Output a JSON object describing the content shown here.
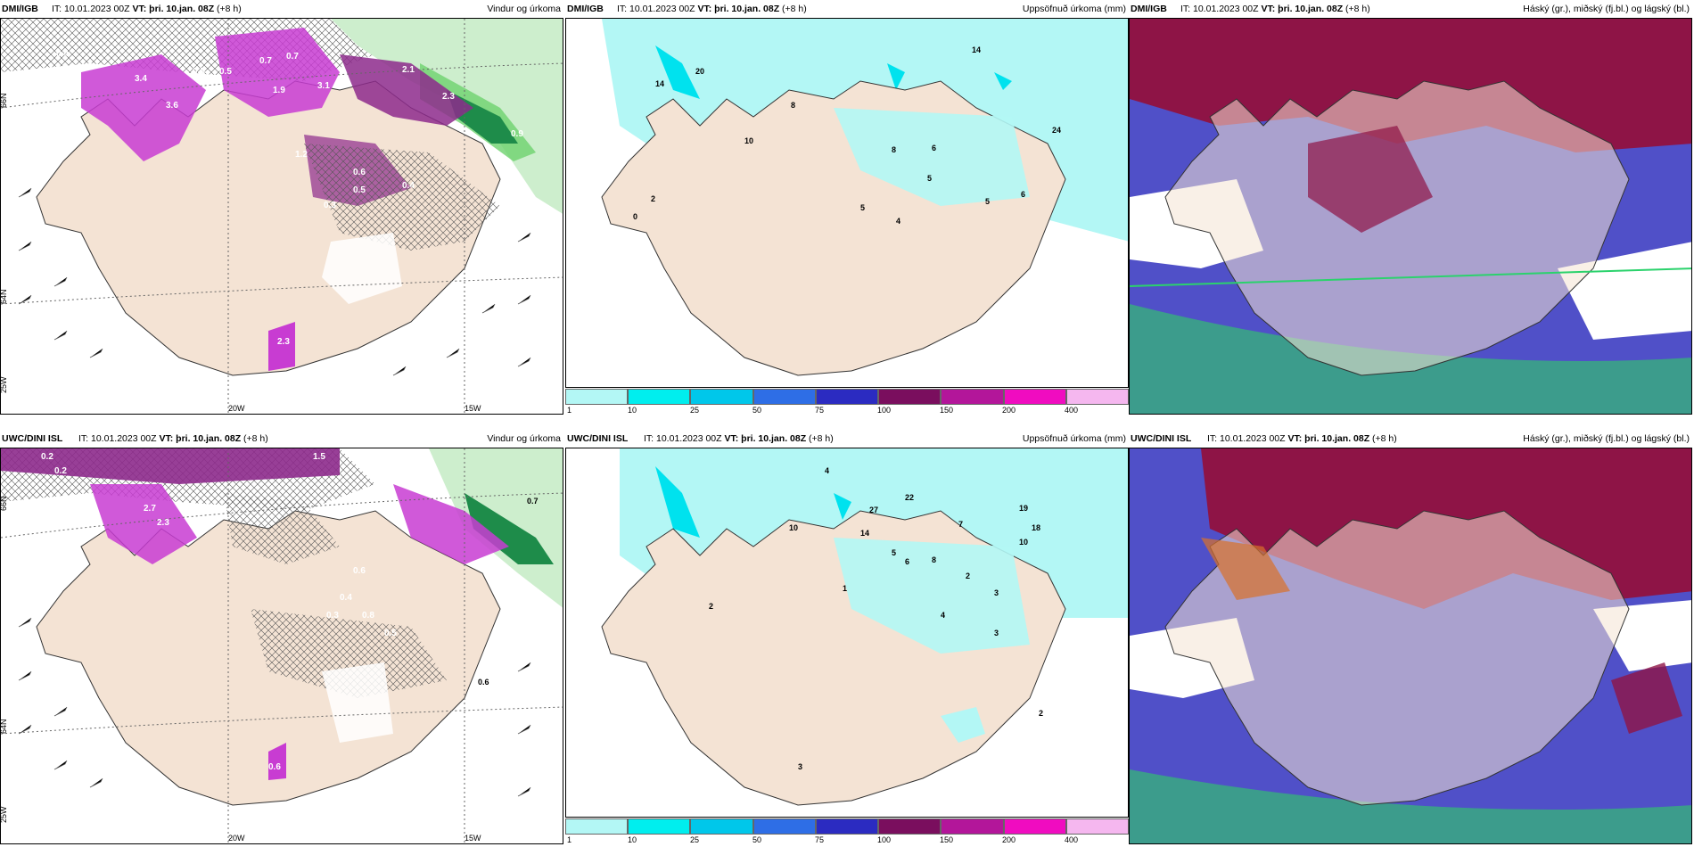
{
  "panels": {
    "top_left": {
      "source": "DMI/IGB",
      "it": "IT: 10.01.2023 00Z",
      "vt_label": "VT:",
      "vt": "þri. 10.jan. 08Z",
      "lead": "(+8 h)",
      "title": "Vindur og úrkoma"
    },
    "top_mid": {
      "source": "DMI/IGB",
      "it": "IT: 10.01.2023 00Z",
      "vt_label": "VT:",
      "vt": "þri. 10.jan. 08Z",
      "lead": "(+8 h)",
      "title": "Uppsöfnuð úrkoma (mm)"
    },
    "top_right": {
      "source": "DMI/IGB",
      "it": "IT: 10.01.2023 00Z",
      "vt_label": "VT:",
      "vt": "þri. 10.jan. 08Z",
      "lead": "(+8 h)",
      "title": "Háský (gr.), miðský (fj.bl.) og lágský (bl.)"
    },
    "bottom_left": {
      "source": "UWC/DINI ISL",
      "it": "IT: 10.01.2023 00Z",
      "vt_label": "VT:",
      "vt": "þri. 10.jan. 08Z",
      "lead": "(+8 h)",
      "title": "Vindur og úrkoma"
    },
    "bottom_mid": {
      "source": "UWC/DINI ISL",
      "it": "IT: 10.01.2023 00Z",
      "vt_label": "VT:",
      "vt": "þri. 10.jan. 08Z",
      "lead": "(+8 h)",
      "title": "Uppsöfnuð úrkoma (mm)"
    },
    "bottom_right": {
      "source": "UWC/DINI ISL",
      "it": "IT: 10.01.2023 00Z",
      "vt_label": "VT:",
      "vt": "þri. 10.jan. 08Z",
      "lead": "(+8 h)",
      "title": "Háský (gr.), miðský (fj.bl.) og lágský (bl.)"
    }
  },
  "axis_labels": {
    "lat_66": "66N",
    "lat_64": "64N",
    "lon_20": "20W",
    "lon_15": "15W",
    "lon_25": "25W"
  },
  "legend": {
    "labels": [
      "1",
      "10",
      "25",
      "50",
      "75",
      "100",
      "150",
      "200",
      "400"
    ],
    "colors": [
      "#b3f7f5",
      "#00eeee",
      "#00c7ea",
      "#2e6ee6",
      "#2b2bc1",
      "#7a0e5e",
      "#b3169a",
      "#f00cc0",
      "#f5b7ef"
    ]
  },
  "precip_values": {
    "top_left": [
      "0.4",
      "0.5",
      "0.5",
      "0.7",
      "0.7",
      "3.4",
      "3.6",
      "1.9",
      "3.1",
      "2.1",
      "0.9",
      "2.3",
      "0.6",
      "0.3",
      "0.4",
      "0.5",
      "1.2",
      "2.3"
    ],
    "bottom_left": [
      "0.2",
      "0.2",
      "1.5",
      "2.7",
      "2.3",
      "0.7",
      "0.6",
      "0.4",
      "0.8",
      "0.5",
      "0.6",
      "0.3",
      "0.6"
    ],
    "top_mid": [
      "14",
      "14",
      "20",
      "8",
      "10",
      "8",
      "6",
      "5",
      "24",
      "5",
      "6",
      "5",
      "4",
      "2",
      "0"
    ],
    "bottom_mid": [
      "4",
      "10",
      "14",
      "22",
      "27",
      "19",
      "18",
      "10",
      "7",
      "5",
      "6",
      "8",
      "2",
      "3",
      "1",
      "2",
      "4",
      "3",
      "2",
      "3"
    ]
  },
  "colors": {
    "land": "#f4e3d4",
    "precip_purple": "#c83cd2",
    "precip_dark": "#8d2a8c",
    "ocean_green": "#6ed26e",
    "accum_light": "#b3f7f5",
    "accum_cyan": "#00e2ee",
    "cloud_high": "#8e1446",
    "cloud_mid": "#5050c8",
    "cloud_low": "#3c9c8c"
  }
}
